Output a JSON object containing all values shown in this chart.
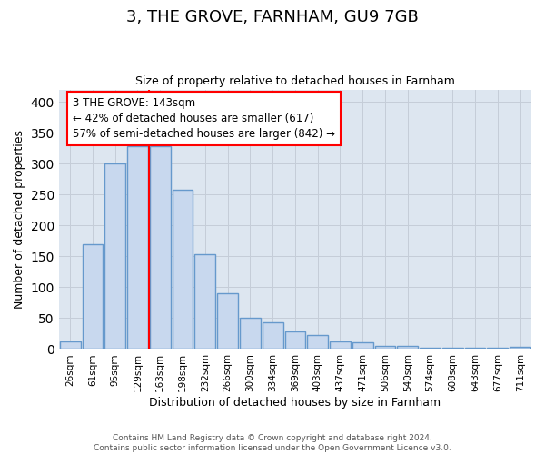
{
  "title": "3, THE GROVE, FARNHAM, GU9 7GB",
  "subtitle": "Size of property relative to detached houses in Farnham",
  "xlabel": "Distribution of detached houses by size in Farnham",
  "ylabel": "Number of detached properties",
  "bar_labels": [
    "26sqm",
    "61sqm",
    "95sqm",
    "129sqm",
    "163sqm",
    "198sqm",
    "232sqm",
    "266sqm",
    "300sqm",
    "334sqm",
    "369sqm",
    "403sqm",
    "437sqm",
    "471sqm",
    "506sqm",
    "540sqm",
    "574sqm",
    "608sqm",
    "643sqm",
    "677sqm",
    "711sqm"
  ],
  "bar_values": [
    13,
    170,
    300,
    328,
    328,
    258,
    153,
    91,
    50,
    43,
    28,
    22,
    12,
    11,
    5,
    5,
    2,
    2,
    2,
    2,
    3
  ],
  "bar_color": "#c8d8ee",
  "bar_edge_color": "#6699cc",
  "bar_edge_width": 1.0,
  "annotation_title": "3 THE GROVE: 143sqm",
  "annotation_line1": "← 42% of detached houses are smaller (617)",
  "annotation_line2": "57% of semi-detached houses are larger (842) →",
  "grid_color": "#c5cdd8",
  "background_color": "#dde6f0",
  "ylim": [
    0,
    420
  ],
  "yticks": [
    0,
    50,
    100,
    150,
    200,
    250,
    300,
    350,
    400
  ],
  "footer_line1": "Contains HM Land Registry data © Crown copyright and database right 2024.",
  "footer_line2": "Contains public sector information licensed under the Open Government Licence v3.0.",
  "title_fontsize": 13,
  "subtitle_fontsize": 9,
  "ylabel_fontsize": 9,
  "xlabel_fontsize": 9,
  "tick_fontsize": 7.5,
  "footer_fontsize": 6.5,
  "annot_fontsize": 8.5
}
